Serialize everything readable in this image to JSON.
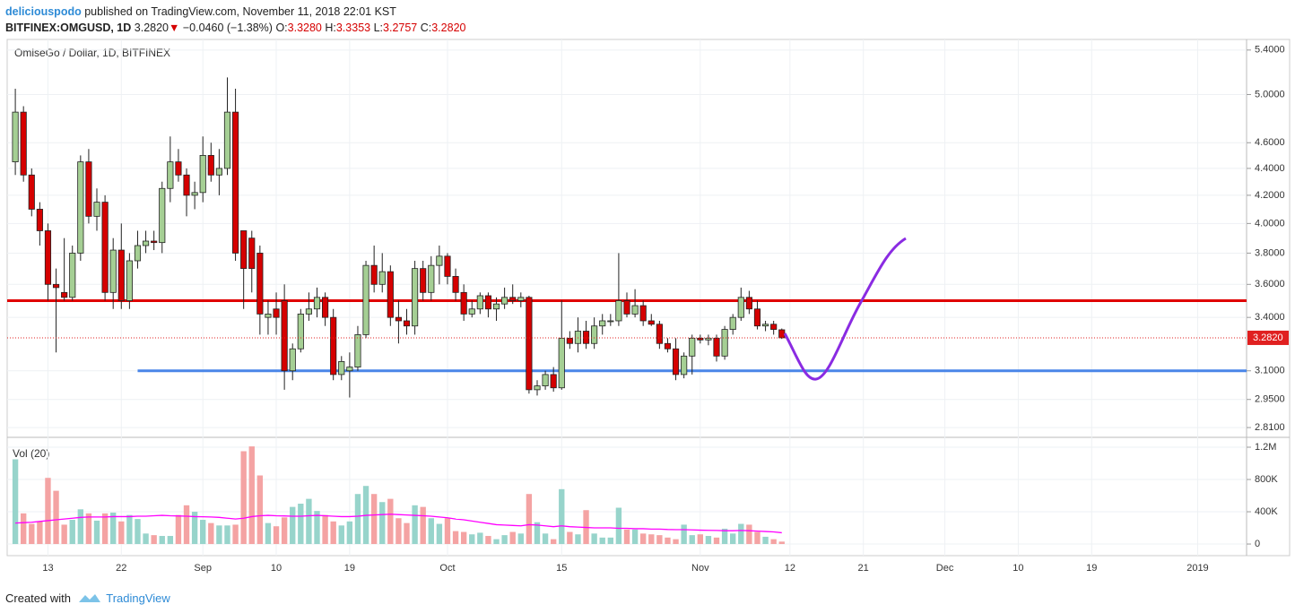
{
  "header": {
    "author": "deliciouspodo",
    "published": "published on TradingView.com, November 11, 2018 22:01 KST",
    "symbol": "BITFINEX:OMGUSD, 1D",
    "last": "3.2820",
    "change": "−0.0460 (−1.38%)",
    "ohlc": [
      {
        "label": "O:",
        "value": "3.3280"
      },
      {
        "label": "H:",
        "value": "3.3353"
      },
      {
        "label": "L:",
        "value": "3.2757"
      },
      {
        "label": "C:",
        "value": "3.2820"
      }
    ]
  },
  "footer": {
    "created": "Created with",
    "brand": "TradingView"
  },
  "chart_data": [
    {
      "type": "candlestick",
      "title": "OmiseGo / Dollar, 1D, BITFINEX",
      "log_scale": true,
      "grid": true,
      "up_color": "#a5cf94",
      "down_color": "#d50000",
      "x": [
        "2018-08-09",
        "2018-08-10",
        "2018-08-11",
        "2018-08-12",
        "2018-08-13",
        "2018-08-14",
        "2018-08-15",
        "2018-08-16",
        "2018-08-17",
        "2018-08-18",
        "2018-08-19",
        "2018-08-20",
        "2018-08-21",
        "2018-08-22",
        "2018-08-23",
        "2018-08-24",
        "2018-08-25",
        "2018-08-26",
        "2018-08-27",
        "2018-08-28",
        "2018-08-29",
        "2018-08-30",
        "2018-08-31",
        "2018-09-01",
        "2018-09-02",
        "2018-09-03",
        "2018-09-04",
        "2018-09-05",
        "2018-09-06",
        "2018-09-07",
        "2018-09-08",
        "2018-09-09",
        "2018-09-10",
        "2018-09-11",
        "2018-09-12",
        "2018-09-13",
        "2018-09-14",
        "2018-09-15",
        "2018-09-16",
        "2018-09-17",
        "2018-09-18",
        "2018-09-19",
        "2018-09-20",
        "2018-09-21",
        "2018-09-22",
        "2018-09-23",
        "2018-09-24",
        "2018-09-25",
        "2018-09-26",
        "2018-09-27",
        "2018-09-28",
        "2018-09-29",
        "2018-09-30",
        "2018-10-01",
        "2018-10-02",
        "2018-10-03",
        "2018-10-04",
        "2018-10-05",
        "2018-10-06",
        "2018-10-07",
        "2018-10-08",
        "2018-10-09",
        "2018-10-10",
        "2018-10-11",
        "2018-10-12",
        "2018-10-13",
        "2018-10-14",
        "2018-10-15",
        "2018-10-16",
        "2018-10-17",
        "2018-10-18",
        "2018-10-19",
        "2018-10-20",
        "2018-10-21",
        "2018-10-22",
        "2018-10-23",
        "2018-10-24",
        "2018-10-25",
        "2018-10-26",
        "2018-10-27",
        "2018-10-28",
        "2018-10-29",
        "2018-10-30",
        "2018-10-31",
        "2018-11-01",
        "2018-11-02",
        "2018-11-03",
        "2018-11-04",
        "2018-11-05",
        "2018-11-06",
        "2018-11-07",
        "2018-11-08",
        "2018-11-09",
        "2018-11-10",
        "2018-11-11"
      ],
      "open": [
        4.45,
        4.85,
        4.35,
        4.1,
        3.95,
        3.6,
        3.55,
        3.52,
        3.8,
        4.45,
        4.05,
        4.15,
        3.55,
        3.82,
        3.5,
        3.75,
        3.85,
        3.88,
        3.87,
        4.25,
        4.45,
        4.35,
        4.2,
        4.22,
        4.5,
        4.35,
        4.4,
        4.85,
        3.95,
        3.9,
        3.8,
        3.4,
        3.45,
        3.5,
        3.1,
        3.22,
        3.42,
        3.45,
        3.52,
        3.4,
        3.08,
        3.1,
        3.12,
        3.3,
        3.72,
        3.6,
        3.68,
        3.4,
        3.38,
        3.35,
        3.7,
        3.55,
        3.72,
        3.78,
        3.65,
        3.55,
        3.42,
        3.45,
        3.53,
        3.45,
        3.48,
        3.52,
        3.5,
        3.52,
        3.0,
        3.02,
        3.08,
        3.01,
        3.28,
        3.25,
        3.32,
        3.25,
        3.35,
        3.38,
        3.38,
        3.5,
        3.42,
        3.47,
        3.38,
        3.36,
        3.25,
        3.22,
        3.08,
        3.18,
        3.28,
        3.27,
        3.28,
        3.18,
        3.33,
        3.4,
        3.52,
        3.45,
        3.35,
        3.36,
        3.328
      ],
      "high": [
        5.05,
        4.9,
        4.4,
        4.15,
        4.0,
        3.7,
        3.9,
        3.85,
        4.5,
        4.55,
        4.25,
        4.2,
        3.9,
        4.0,
        3.8,
        3.95,
        3.95,
        3.95,
        4.3,
        4.65,
        4.55,
        4.4,
        4.3,
        4.65,
        4.6,
        4.55,
        5.15,
        5.05,
        3.95,
        3.95,
        3.85,
        3.5,
        3.55,
        3.6,
        3.25,
        3.45,
        3.55,
        3.58,
        3.55,
        3.45,
        3.18,
        3.2,
        3.35,
        3.75,
        3.85,
        3.8,
        3.72,
        3.5,
        3.45,
        3.75,
        3.75,
        3.78,
        3.85,
        3.8,
        3.7,
        3.6,
        3.5,
        3.55,
        3.55,
        3.52,
        3.58,
        3.6,
        3.55,
        3.53,
        3.05,
        3.1,
        3.12,
        3.5,
        3.32,
        3.4,
        3.38,
        3.4,
        3.42,
        3.42,
        3.8,
        3.55,
        3.57,
        3.5,
        3.42,
        3.38,
        3.28,
        3.28,
        3.2,
        3.3,
        3.3,
        3.3,
        3.3,
        3.35,
        3.42,
        3.58,
        3.56,
        3.5,
        3.38,
        3.38,
        3.3353
      ],
      "low": [
        4.35,
        4.3,
        4.05,
        3.85,
        3.5,
        3.2,
        3.5,
        3.5,
        3.75,
        4.0,
        3.95,
        3.5,
        3.45,
        3.45,
        3.45,
        3.7,
        3.8,
        3.82,
        3.8,
        4.15,
        4.3,
        4.05,
        4.1,
        4.15,
        4.3,
        4.2,
        4.35,
        3.75,
        3.45,
        3.55,
        3.3,
        3.3,
        3.3,
        3.0,
        3.05,
        3.2,
        3.38,
        3.4,
        3.35,
        3.05,
        3.05,
        2.96,
        3.1,
        3.28,
        3.55,
        3.55,
        3.35,
        3.25,
        3.3,
        3.3,
        3.5,
        3.5,
        3.6,
        3.6,
        3.5,
        3.38,
        3.4,
        3.42,
        3.4,
        3.38,
        3.45,
        3.48,
        3.46,
        2.98,
        2.97,
        3.0,
        2.99,
        3.0,
        3.22,
        3.2,
        3.22,
        3.22,
        3.3,
        3.35,
        3.35,
        3.4,
        3.4,
        3.35,
        3.35,
        3.22,
        3.2,
        3.05,
        3.06,
        3.08,
        3.25,
        3.24,
        3.15,
        3.16,
        3.3,
        3.38,
        3.42,
        3.33,
        3.32,
        3.3,
        3.2757
      ],
      "close": [
        4.85,
        4.35,
        4.1,
        3.95,
        3.6,
        3.58,
        3.52,
        3.8,
        4.45,
        4.05,
        4.15,
        3.55,
        3.82,
        3.5,
        3.75,
        3.85,
        3.88,
        3.87,
        4.25,
        4.45,
        4.35,
        4.2,
        4.22,
        4.5,
        4.35,
        4.4,
        4.85,
        3.8,
        3.7,
        3.7,
        3.42,
        3.42,
        3.4,
        3.1,
        3.22,
        3.42,
        3.45,
        3.52,
        3.4,
        3.08,
        3.15,
        3.12,
        3.3,
        3.72,
        3.6,
        3.68,
        3.4,
        3.38,
        3.35,
        3.7,
        3.55,
        3.72,
        3.78,
        3.65,
        3.55,
        3.42,
        3.45,
        3.53,
        3.45,
        3.48,
        3.52,
        3.5,
        3.52,
        3.0,
        3.02,
        3.08,
        3.01,
        3.28,
        3.25,
        3.32,
        3.25,
        3.35,
        3.38,
        3.38,
        3.5,
        3.42,
        3.47,
        3.38,
        3.36,
        3.25,
        3.22,
        3.08,
        3.18,
        3.28,
        3.27,
        3.28,
        3.18,
        3.33,
        3.4,
        3.52,
        3.45,
        3.35,
        3.36,
        3.33,
        3.282
      ],
      "ylim": [
        2.78,
        5.5
      ],
      "yticks": [
        {
          "value": 2.81,
          "label": "2.8100"
        },
        {
          "value": 2.95,
          "label": "2.9500"
        },
        {
          "value": 3.1,
          "label": "3.1000"
        },
        {
          "value": 3.4,
          "label": "3.4000"
        },
        {
          "value": 3.6,
          "label": "3.6000"
        },
        {
          "value": 3.8,
          "label": "3.8000"
        },
        {
          "value": 4,
          "label": "4.0000"
        },
        {
          "value": 4.2,
          "label": "4.2000"
        },
        {
          "value": 4.4,
          "label": "4.4000"
        },
        {
          "value": 4.6,
          "label": "4.6000"
        },
        {
          "value": 5,
          "label": "5.0000"
        },
        {
          "value": 5.4,
          "label": "5.4000"
        }
      ],
      "xlim": [
        "2018-08-08",
        "2019-01-07"
      ],
      "xticks": [
        {
          "value": "2018-08-13",
          "label": "13"
        },
        {
          "value": "2018-08-22",
          "label": "22"
        },
        {
          "value": "2018-09-01",
          "label": "Sep"
        },
        {
          "value": "2018-09-10",
          "label": "10"
        },
        {
          "value": "2018-09-19",
          "label": "19"
        },
        {
          "value": "2018-10-01",
          "label": "Oct"
        },
        {
          "value": "2018-10-15",
          "label": "15"
        },
        {
          "value": "2018-11-01",
          "label": "Nov"
        },
        {
          "value": "2018-11-12",
          "label": "12"
        },
        {
          "value": "2018-11-21",
          "label": "21"
        },
        {
          "value": "2018-12-01",
          "label": "Dec"
        },
        {
          "value": "2018-12-10",
          "label": "10"
        },
        {
          "value": "2018-12-19",
          "label": "19"
        },
        {
          "value": "2019-01-01",
          "label": "2019"
        }
      ],
      "current_price": {
        "value": 3.282,
        "label": "3.2820",
        "color": "#e02020"
      },
      "hlines": [
        {
          "value": 3.5,
          "color": "#e00000",
          "start": "2018-08-08"
        },
        {
          "value": 3.1,
          "color": "#4a86e8",
          "start": "2018-08-24"
        }
      ]
    },
    {
      "type": "bar",
      "title": "Vol (20)",
      "up_color": "#97d4cb",
      "down_color": "#f4a3a3",
      "line_color": "#ff00ff",
      "values": [
        1050000,
        380000,
        250000,
        280000,
        820000,
        660000,
        240000,
        300000,
        430000,
        380000,
        290000,
        380000,
        390000,
        280000,
        360000,
        310000,
        130000,
        110000,
        100000,
        100000,
        360000,
        480000,
        400000,
        300000,
        260000,
        230000,
        230000,
        240000,
        1150000,
        1210000,
        850000,
        260000,
        220000,
        330000,
        460000,
        500000,
        560000,
        410000,
        360000,
        280000,
        230000,
        280000,
        620000,
        720000,
        620000,
        520000,
        560000,
        320000,
        260000,
        480000,
        460000,
        320000,
        250000,
        320000,
        160000,
        150000,
        120000,
        140000,
        100000,
        60000,
        110000,
        150000,
        130000,
        620000,
        270000,
        130000,
        60000,
        680000,
        150000,
        120000,
        420000,
        130000,
        80000,
        80000,
        450000,
        180000,
        180000,
        130000,
        120000,
        110000,
        80000,
        60000,
        240000,
        110000,
        120000,
        100000,
        80000,
        190000,
        130000,
        250000,
        240000,
        150000,
        90000,
        60000,
        30000
      ],
      "line_values": [
        260000,
        265000,
        270000,
        280000,
        290000,
        300000,
        310000,
        320000,
        330000,
        335000,
        335000,
        335000,
        340000,
        340000,
        340000,
        345000,
        345000,
        350000,
        355000,
        350000,
        348000,
        345000,
        340000,
        338000,
        335000,
        330000,
        320000,
        310000,
        320000,
        340000,
        350000,
        355000,
        350000,
        348000,
        345000,
        345000,
        350000,
        355000,
        350000,
        345000,
        340000,
        340000,
        345000,
        355000,
        360000,
        365000,
        370000,
        365000,
        360000,
        355000,
        350000,
        345000,
        335000,
        325000,
        310000,
        300000,
        285000,
        270000,
        255000,
        240000,
        235000,
        230000,
        225000,
        240000,
        235000,
        225000,
        215000,
        225000,
        215000,
        210000,
        205000,
        200000,
        200000,
        200000,
        195000,
        195000,
        190000,
        190000,
        185000,
        185000,
        180000,
        178000,
        178000,
        175000,
        172000,
        170000,
        168000,
        165000,
        165000,
        168000,
        165000,
        160000,
        155000,
        150000,
        140000
      ],
      "ylim": [
        -144000,
        1300000
      ],
      "yticks": [
        0,
        {
          "value": 400000,
          "label": "400K"
        },
        {
          "value": 800000,
          "label": "800K"
        },
        {
          "value": 1200000,
          "label": "1.2M"
        }
      ]
    }
  ]
}
